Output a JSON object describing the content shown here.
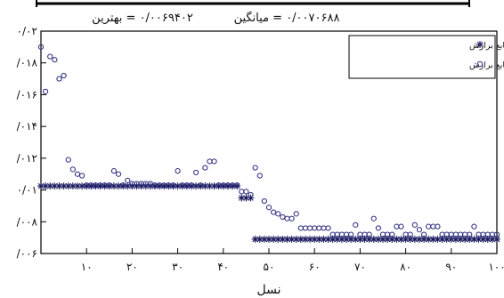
{
  "header": {
    "best_text": "۰/۰۰۶۹۴۰۲ = بهترین",
    "mean_text": "۰/۰۰۷۰۶۸۸ = میانگین"
  },
  "chart_data": {
    "type": "scatter",
    "title": "",
    "xlabel": "نسل",
    "ylabel": "",
    "xlim": [
      0,
      100
    ],
    "ylim": [
      0.006,
      0.02
    ],
    "grid": false,
    "legend_position": "top-right",
    "x_ticks": [
      {
        "value": 10,
        "label": "۱۰"
      },
      {
        "value": 20,
        "label": "۲۰"
      },
      {
        "value": 30,
        "label": "۳۰"
      },
      {
        "value": 40,
        "label": "۴۰"
      },
      {
        "value": 50,
        "label": "۵۰"
      },
      {
        "value": 60,
        "label": "۶۰"
      },
      {
        "value": 70,
        "label": "۷۰"
      },
      {
        "value": 80,
        "label": "۸۰"
      },
      {
        "value": 90,
        "label": "۹۰"
      },
      {
        "value": 100,
        "label": "۱۰۰"
      }
    ],
    "y_ticks": [
      {
        "value": 0.006,
        "label": "/۰۰۶"
      },
      {
        "value": 0.008,
        "label": "/۰۰۸"
      },
      {
        "value": 0.01,
        "label": "۰/۰۱"
      },
      {
        "value": 0.012,
        "label": "/۰۱۲"
      },
      {
        "value": 0.014,
        "label": "/۰۱۴"
      },
      {
        "value": 0.016,
        "label": "/۰۱۶"
      },
      {
        "value": 0.018,
        "label": "/۰۱۸"
      },
      {
        "value": 0.02,
        "label": "۰/۰۲"
      }
    ],
    "series": [
      {
        "name": "بهترین مقدار تابع برازش",
        "marker": "asterisk",
        "color": "#1a1a5e",
        "x": [
          0,
          1,
          2,
          3,
          4,
          5,
          6,
          7,
          8,
          9,
          10,
          11,
          12,
          13,
          14,
          15,
          16,
          17,
          18,
          19,
          20,
          21,
          22,
          23,
          24,
          25,
          26,
          27,
          28,
          29,
          30,
          31,
          32,
          33,
          34,
          35,
          36,
          37,
          38,
          39,
          40,
          41,
          42,
          43,
          44,
          45,
          46,
          47,
          48,
          49,
          50,
          51,
          52,
          53,
          54,
          55,
          56,
          57,
          58,
          59,
          60,
          61,
          62,
          63,
          64,
          65,
          66,
          67,
          68,
          69,
          70,
          71,
          72,
          73,
          74,
          75,
          76,
          77,
          78,
          79,
          80,
          81,
          82,
          83,
          84,
          85,
          86,
          87,
          88,
          89,
          90,
          91,
          92,
          93,
          94,
          95,
          96,
          97,
          98,
          99,
          100
        ],
        "y": [
          0.01025,
          0.01025,
          0.01025,
          0.01025,
          0.01025,
          0.01025,
          0.01025,
          0.01025,
          0.01025,
          0.01025,
          0.01025,
          0.01025,
          0.01025,
          0.01025,
          0.01025,
          0.01025,
          0.01025,
          0.01025,
          0.01025,
          0.01025,
          0.01025,
          0.01025,
          0.01025,
          0.01025,
          0.01025,
          0.01025,
          0.01025,
          0.01025,
          0.01025,
          0.01025,
          0.01025,
          0.01025,
          0.01025,
          0.01025,
          0.01025,
          0.01025,
          0.01025,
          0.01025,
          0.01025,
          0.01025,
          0.01025,
          0.01025,
          0.01025,
          0.01025,
          0.0095,
          0.0095,
          0.0095,
          0.0069,
          0.0069,
          0.0069,
          0.0069,
          0.0069,
          0.0069,
          0.0069,
          0.0069,
          0.0069,
          0.0069,
          0.0069,
          0.0069,
          0.0069,
          0.0069,
          0.0069,
          0.0069,
          0.0069,
          0.0069,
          0.0069,
          0.0069,
          0.0069,
          0.0069,
          0.0069,
          0.0069,
          0.0069,
          0.0069,
          0.0069,
          0.0069,
          0.0069,
          0.0069,
          0.0069,
          0.0069,
          0.0069,
          0.0069,
          0.0069,
          0.0069,
          0.0069,
          0.0069,
          0.0069,
          0.0069,
          0.0069,
          0.0069,
          0.0069,
          0.0069,
          0.0069,
          0.0069,
          0.0069,
          0.0069,
          0.0069,
          0.0069,
          0.0069,
          0.0069,
          0.0069,
          0.0069
        ]
      },
      {
        "name": "مقدار میانگین تابع برازش",
        "marker": "circle",
        "color": "#2a2a80",
        "x": [
          0,
          1,
          2,
          3,
          4,
          5,
          6,
          7,
          8,
          9,
          10,
          11,
          12,
          13,
          14,
          15,
          16,
          17,
          18,
          19,
          20,
          21,
          22,
          23,
          24,
          25,
          26,
          27,
          28,
          29,
          30,
          31,
          32,
          33,
          34,
          35,
          36,
          37,
          38,
          39,
          40,
          41,
          42,
          43,
          44,
          45,
          46,
          47,
          48,
          49,
          50,
          51,
          52,
          53,
          54,
          55,
          56,
          57,
          58,
          59,
          60,
          61,
          62,
          63,
          64,
          65,
          66,
          67,
          68,
          69,
          70,
          71,
          72,
          73,
          74,
          75,
          76,
          77,
          78,
          79,
          80,
          81,
          82,
          83,
          84,
          85,
          86,
          87,
          88,
          89,
          90,
          91,
          92,
          93,
          94,
          95,
          96,
          97,
          98,
          99,
          100
        ],
        "y": [
          0.019,
          0.0162,
          0.0184,
          0.0182,
          0.017,
          0.0172,
          0.0119,
          0.0113,
          0.011,
          0.0109,
          0.0103,
          0.0103,
          0.0103,
          0.0103,
          0.0103,
          0.0103,
          0.0112,
          0.011,
          0.0103,
          0.0106,
          0.0104,
          0.0104,
          0.0104,
          0.0104,
          0.0104,
          0.0103,
          0.0103,
          0.0103,
          0.0103,
          0.0103,
          0.0112,
          0.0103,
          0.0103,
          0.0103,
          0.0111,
          0.0103,
          0.0114,
          0.0118,
          0.0118,
          0.0103,
          0.0103,
          0.0103,
          0.0103,
          0.0103,
          0.0099,
          0.0099,
          0.0097,
          0.0114,
          0.0109,
          0.0093,
          0.0089,
          0.0086,
          0.0085,
          0.0083,
          0.0082,
          0.0082,
          0.0085,
          0.0076,
          0.0076,
          0.0076,
          0.0076,
          0.0076,
          0.0076,
          0.0076,
          0.0072,
          0.0072,
          0.0072,
          0.0072,
          0.0072,
          0.0078,
          0.0072,
          0.0072,
          0.0072,
          0.0082,
          0.0076,
          0.0072,
          0.0072,
          0.0072,
          0.0077,
          0.0077,
          0.0072,
          0.0072,
          0.0078,
          0.0075,
          0.0072,
          0.0077,
          0.0077,
          0.0077,
          0.0072,
          0.0072,
          0.0072,
          0.0072,
          0.0072,
          0.0072,
          0.0072,
          0.0077,
          0.0072,
          0.0072,
          0.0072,
          0.0072,
          0.0072
        ]
      }
    ]
  }
}
